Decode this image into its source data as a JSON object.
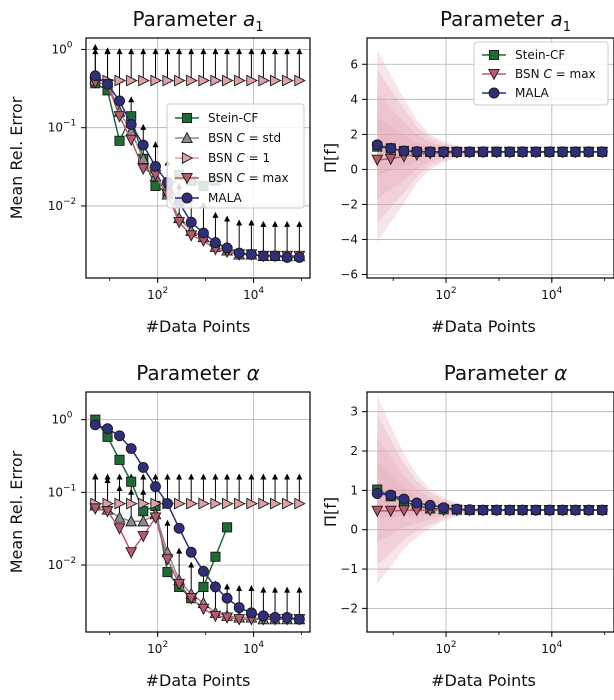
{
  "colors": {
    "stein": "#1f6b35",
    "bsn_std": "#8c8c8c",
    "bsn_one": "#e0a0a8",
    "bsn_max": "#b85a6e",
    "mala": "#2e2e7a",
    "band": "#e3a2b1"
  },
  "legend_labels": {
    "stein": "Stein-CF",
    "bsn_std_pre": "BSN ",
    "bsn_std_post": " = std",
    "bsn_one_pre": "BSN ",
    "bsn_one_post": " = 1",
    "bsn_max_pre": "BSN ",
    "bsn_max_post": " = max",
    "mala": "MALA",
    "c_symbol": "C"
  },
  "chart_data": [
    {
      "type": "line",
      "panel": "error-a1",
      "title_prefix": "Parameter ",
      "title_symbol": "a",
      "title_sub": "1",
      "xlabel": "#Data Points",
      "ylabel": "Mean Rel. Error",
      "xscale": "log",
      "yscale": "log",
      "xlim": [
        3.2,
        150000
      ],
      "ylim": [
        0.0012,
        1.4
      ],
      "xticks": [
        {
          "value": 100,
          "exp": "2"
        },
        {
          "value": 10000,
          "exp": "4"
        }
      ],
      "yticks": [
        {
          "value": 0.01,
          "exp": "−2"
        },
        {
          "value": 0.1,
          "exp": "−1"
        },
        {
          "value": 1,
          "exp": "0"
        }
      ],
      "tick_base": "10",
      "grid": true,
      "legend": "center-right",
      "x": [
        5,
        9,
        16,
        28,
        50,
        90,
        160,
        280,
        500,
        900,
        1600,
        2800,
        5000,
        9000,
        16000,
        28000,
        50000,
        90000
      ],
      "series": [
        {
          "key": "stein",
          "marker": "square",
          "values": [
            0.37,
            0.3,
            0.068,
            0.14,
            0.04,
            0.018,
            0.015,
            0.025,
            0.021,
            0.018,
            0.021,
            null,
            null,
            null,
            null,
            null,
            null,
            null
          ]
        },
        {
          "key": "bsn_std",
          "marker": "triangle-up",
          "values": [
            0.42,
            0.38,
            0.16,
            0.09,
            0.04,
            0.024,
            0.014,
            0.007,
            0.0048,
            0.004,
            0.003,
            0.0027,
            0.0024,
            0.0024,
            0.0023,
            0.0023,
            0.0023,
            0.0023
          ]
        },
        {
          "key": "bsn_one",
          "marker": "triangle-right",
          "values": [
            0.4,
            0.4,
            0.4,
            0.4,
            0.4,
            0.4,
            0.4,
            0.4,
            0.4,
            0.4,
            0.4,
            0.4,
            0.4,
            0.4,
            0.4,
            0.4,
            0.4,
            0.4
          ]
        },
        {
          "key": "bsn_max",
          "marker": "triangle-down",
          "values": [
            0.38,
            0.36,
            0.14,
            0.07,
            0.03,
            0.025,
            0.014,
            0.0062,
            0.0042,
            0.0036,
            0.0028,
            0.0026,
            0.0024,
            0.0024,
            0.0023,
            0.0023,
            0.0023,
            0.0023
          ]
        },
        {
          "key": "mala",
          "marker": "circle",
          "values": [
            0.46,
            0.36,
            0.22,
            0.11,
            0.06,
            0.032,
            0.02,
            0.011,
            0.0062,
            0.0045,
            0.0034,
            0.0029,
            0.0025,
            0.0024,
            0.0023,
            0.0023,
            0.0022,
            0.0022
          ]
        }
      ]
    },
    {
      "type": "line",
      "panel": "estimate-a1",
      "title_prefix": "Parameter ",
      "title_symbol": "a",
      "title_sub": "1",
      "xlabel": "#Data Points",
      "ylabel": "Π[f]",
      "xscale": "log",
      "yscale": "linear",
      "xlim": [
        3.2,
        150000
      ],
      "ylim": [
        -6.2,
        7.5
      ],
      "xticks": [
        {
          "value": 100,
          "exp": "2"
        },
        {
          "value": 10000,
          "exp": "4"
        }
      ],
      "yticks": [
        {
          "value": -6,
          "label": "−6"
        },
        {
          "value": -4,
          "label": "−4"
        },
        {
          "value": -2,
          "label": "−2"
        },
        {
          "value": 0,
          "label": "0"
        },
        {
          "value": 2,
          "label": "2"
        },
        {
          "value": 4,
          "label": "4"
        },
        {
          "value": 6,
          "label": "6"
        }
      ],
      "tick_base": "10",
      "grid": true,
      "legend": "top-right",
      "x": [
        5,
        9,
        16,
        28,
        50,
        90,
        160,
        280,
        500,
        900,
        1600,
        2800,
        5000,
        9000,
        16000,
        28000,
        50000,
        90000
      ],
      "band_levels": [
        0.3,
        0.55,
        0.8,
        1.0
      ],
      "band_width": [
        5.5,
        4.2,
        3.0,
        1.8,
        1.0,
        0.6,
        0.35,
        0.2,
        0.12,
        0.08,
        0.05,
        0.03,
        0.02,
        0.01,
        0.01,
        0.01,
        0.01,
        0.01
      ],
      "series": [
        {
          "key": "stein",
          "marker": "square",
          "values": [
            1.3,
            1.2,
            1.05,
            1.0,
            1.0,
            1.0,
            1.0,
            1.0,
            1.0,
            1.0,
            1.0,
            1.0,
            1.0,
            1.0,
            1.0,
            1.0,
            1.0,
            1.0
          ]
        },
        {
          "key": "bsn_max",
          "marker": "triangle-down",
          "values": [
            0.55,
            0.6,
            0.75,
            0.85,
            0.92,
            0.96,
            0.98,
            0.99,
            1.0,
            1.0,
            1.0,
            1.0,
            1.0,
            1.0,
            1.0,
            1.0,
            1.0,
            1.0
          ]
        },
        {
          "key": "mala",
          "marker": "circle",
          "values": [
            1.4,
            1.2,
            1.05,
            1.02,
            1.0,
            1.0,
            1.0,
            1.0,
            1.0,
            1.0,
            1.0,
            1.0,
            1.0,
            1.0,
            1.0,
            1.0,
            1.0,
            1.0
          ]
        }
      ]
    },
    {
      "type": "line",
      "panel": "error-alpha",
      "title_prefix": "Parameter ",
      "title_symbol": "α",
      "title_sub": "",
      "xlabel": "#Data Points",
      "ylabel": "Mean Rel. Error",
      "xscale": "log",
      "yscale": "log",
      "xlim": [
        3.2,
        150000
      ],
      "ylim": [
        0.0012,
        2.4
      ],
      "xticks": [
        {
          "value": 100,
          "exp": "2"
        },
        {
          "value": 10000,
          "exp": "4"
        }
      ],
      "yticks": [
        {
          "value": 0.01,
          "exp": "−2"
        },
        {
          "value": 0.1,
          "exp": "−1"
        },
        {
          "value": 1,
          "exp": "0"
        }
      ],
      "tick_base": "10",
      "grid": true,
      "legend": "none",
      "x": [
        5,
        9,
        16,
        28,
        50,
        90,
        160,
        280,
        500,
        900,
        1600,
        2800,
        5000,
        9000,
        16000,
        28000,
        50000,
        90000
      ],
      "series": [
        {
          "key": "stein",
          "marker": "square",
          "values": [
            1.0,
            0.58,
            0.28,
            0.14,
            0.055,
            0.065,
            0.008,
            0.005,
            0.0035,
            0.005,
            0.013,
            0.033,
            null,
            null,
            null,
            null,
            null,
            null
          ]
        },
        {
          "key": "bsn_std",
          "marker": "triangle-up",
          "values": [
            0.066,
            0.058,
            0.045,
            0.04,
            0.04,
            0.05,
            0.015,
            0.0062,
            0.004,
            0.003,
            0.0022,
            0.002,
            0.0019,
            0.0019,
            0.0018,
            0.0018,
            0.0018,
            0.0018
          ]
        },
        {
          "key": "bsn_one",
          "marker": "triangle-right",
          "values": [
            0.07,
            0.07,
            0.07,
            0.07,
            0.07,
            0.07,
            0.07,
            0.07,
            0.07,
            0.07,
            0.07,
            0.07,
            0.07,
            0.07,
            0.07,
            0.07,
            0.07,
            0.07
          ]
        },
        {
          "key": "bsn_max",
          "marker": "triangle-down",
          "values": [
            0.06,
            0.055,
            0.032,
            0.015,
            0.025,
            0.045,
            0.012,
            0.0055,
            0.0035,
            0.0025,
            0.002,
            0.0019,
            0.0018,
            0.0018,
            0.0018,
            0.0018,
            0.0018,
            0.0018
          ]
        },
        {
          "key": "mala",
          "marker": "circle",
          "values": [
            0.85,
            0.75,
            0.6,
            0.4,
            0.22,
            0.12,
            0.07,
            0.032,
            0.015,
            0.0082,
            0.005,
            0.0035,
            0.0026,
            0.0022,
            0.002,
            0.0019,
            0.0019,
            0.0018
          ]
        }
      ]
    },
    {
      "type": "line",
      "panel": "estimate-alpha",
      "title_prefix": "Parameter ",
      "title_symbol": "α",
      "title_sub": "",
      "xlabel": "#Data Points",
      "ylabel": "Π[f]",
      "xscale": "log",
      "yscale": "linear",
      "xlim": [
        3.2,
        150000
      ],
      "ylim": [
        -2.6,
        3.5
      ],
      "xticks": [
        {
          "value": 100,
          "exp": "2"
        },
        {
          "value": 10000,
          "exp": "4"
        }
      ],
      "yticks": [
        {
          "value": -2,
          "label": "−2"
        },
        {
          "value": -1,
          "label": "−1"
        },
        {
          "value": 0,
          "label": "0"
        },
        {
          "value": 1,
          "label": "1"
        },
        {
          "value": 2,
          "label": "2"
        },
        {
          "value": 3,
          "label": "3"
        }
      ],
      "tick_base": "10",
      "grid": true,
      "legend": "none",
      "x": [
        5,
        9,
        16,
        28,
        50,
        90,
        160,
        280,
        500,
        900,
        1600,
        2800,
        5000,
        9000,
        16000,
        28000,
        50000,
        90000
      ],
      "band_levels": [
        0.3,
        0.55,
        0.8,
        1.0
      ],
      "band_width": [
        2.4,
        1.8,
        1.2,
        0.8,
        0.5,
        0.3,
        0.18,
        0.1,
        0.06,
        0.04,
        0.03,
        0.02,
        0.01,
        0.01,
        0.01,
        0.01,
        0.01,
        0.01
      ],
      "series": [
        {
          "key": "stein",
          "marker": "square",
          "values": [
            1.02,
            0.85,
            0.72,
            0.6,
            0.54,
            0.52,
            0.51,
            0.5,
            0.5,
            0.5,
            0.5,
            0.5,
            0.5,
            0.5,
            0.5,
            0.5,
            0.5,
            0.5
          ]
        },
        {
          "key": "bsn_max",
          "marker": "triangle-down",
          "values": [
            0.48,
            0.48,
            0.49,
            0.5,
            0.5,
            0.5,
            0.5,
            0.5,
            0.5,
            0.5,
            0.5,
            0.5,
            0.5,
            0.5,
            0.5,
            0.5,
            0.5,
            0.5
          ]
        },
        {
          "key": "mala",
          "marker": "circle",
          "values": [
            0.92,
            0.88,
            0.78,
            0.68,
            0.62,
            0.56,
            0.52,
            0.51,
            0.5,
            0.5,
            0.5,
            0.5,
            0.5,
            0.5,
            0.5,
            0.5,
            0.5,
            0.5
          ]
        }
      ]
    }
  ]
}
